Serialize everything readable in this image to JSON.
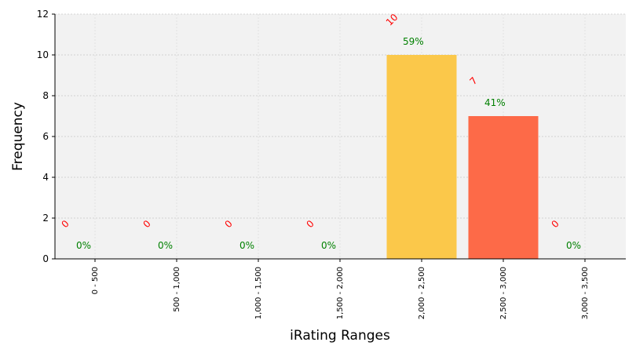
{
  "chart_data": {
    "type": "bar",
    "xlabel": "iRating Ranges",
    "ylabel": "Frequency",
    "ylim": [
      0,
      12
    ],
    "yticks": [
      0,
      2,
      4,
      6,
      8,
      10,
      12
    ],
    "grid": true,
    "categories": [
      "0 - 500",
      "500 - 1,000",
      "1,000 - 1,500",
      "1,500 - 2,000",
      "2,000 - 2,500",
      "2,500 - 3,000",
      "3,000 - 3,500"
    ],
    "values": [
      0,
      0,
      0,
      0,
      10,
      7,
      0
    ],
    "count_labels": [
      "0",
      "0",
      "0",
      "0",
      "10",
      "7",
      "0"
    ],
    "percent_labels": [
      "0%",
      "0%",
      "0%",
      "0%",
      "59%",
      "41%",
      "0%"
    ],
    "colors": [
      "#cccccc",
      "#cccccc",
      "#cccccc",
      "#cccccc",
      "#fbc84a",
      "#fd6a48",
      "#cccccc"
    ],
    "plot_background": "#f2f2f2",
    "count_label_color": "#ff0000",
    "percent_label_color": "#008000"
  }
}
